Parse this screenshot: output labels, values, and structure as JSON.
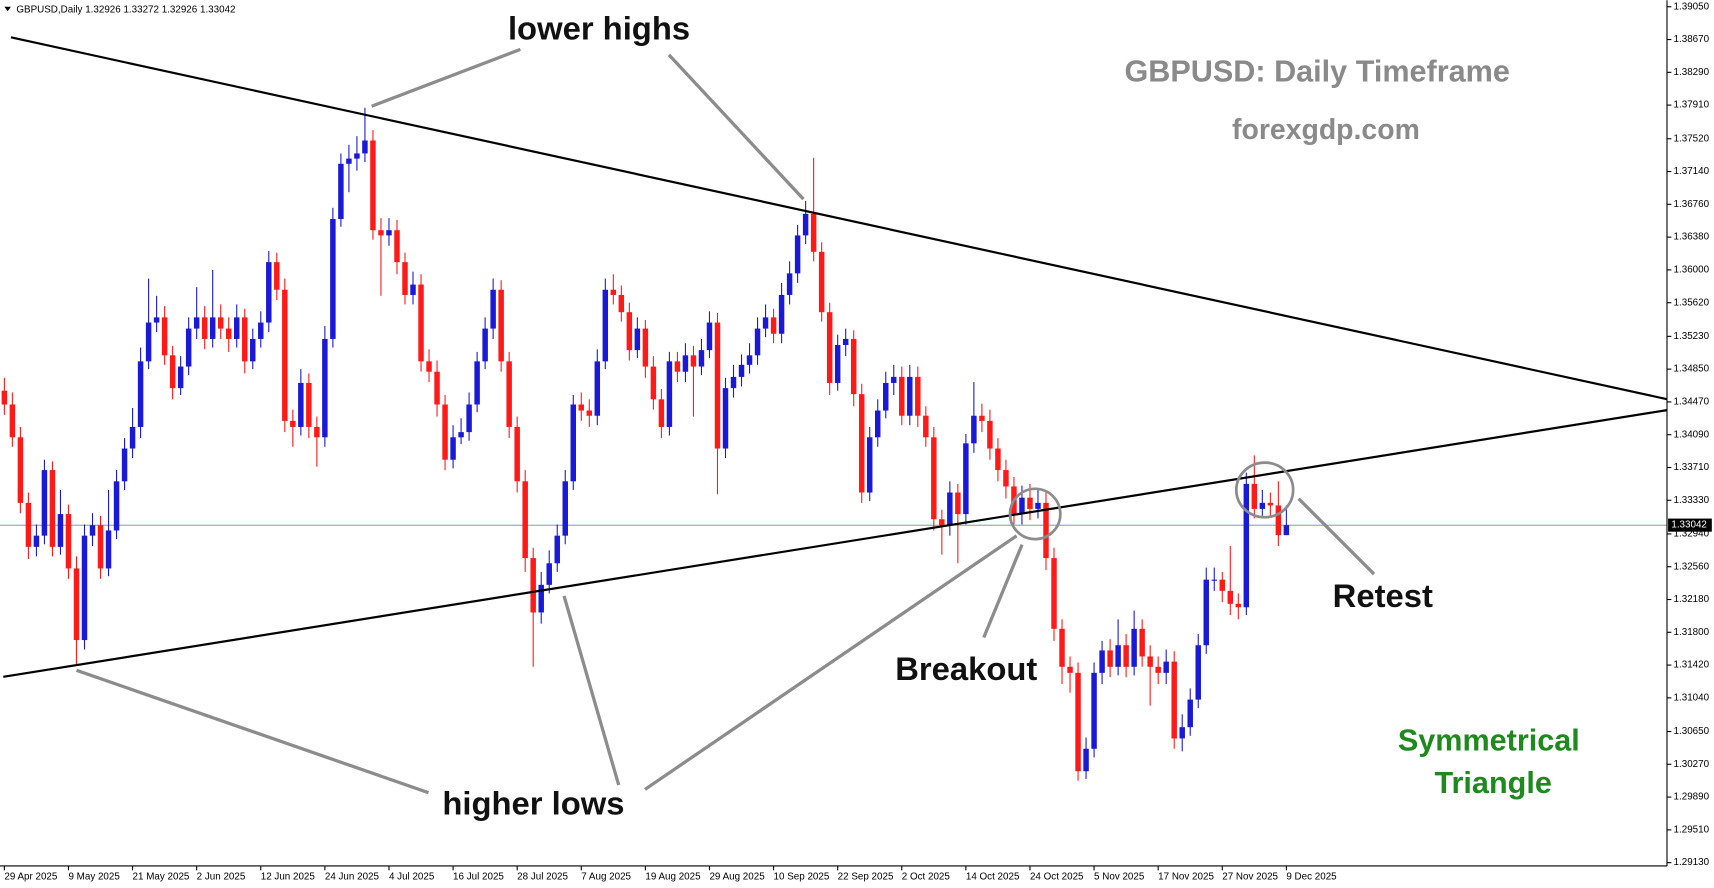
{
  "chart_data": {
    "type": "candlestick",
    "header": "GBPUSD,Daily 1.32926 1.33272 1.32926 1.33042",
    "title": "GBPUSD: Daily Timeframe",
    "subtitle": "forexgdp.com",
    "annotations": [
      "lower highs",
      "higher lows",
      "Breakout",
      "Retest"
    ],
    "pattern_label": [
      "Symmetrical",
      "Triangle"
    ],
    "up_color": "#1a1ad6",
    "down_color": "#ff1a1a",
    "last_price": {
      "value": 1.33042,
      "label": "1.33042"
    },
    "ylim": [
      1.29092,
      1.39126
    ],
    "yticks": [
      {
        "value": 1.3905,
        "label": "1.39050"
      },
      {
        "value": 1.3867,
        "label": "1.38670"
      },
      {
        "value": 1.3829,
        "label": "1.38290"
      },
      {
        "value": 1.3791,
        "label": "1.37910"
      },
      {
        "value": 1.3752,
        "label": "1.37520"
      },
      {
        "value": 1.3714,
        "label": "1.37140"
      },
      {
        "value": 1.3676,
        "label": "1.36760"
      },
      {
        "value": 1.3638,
        "label": "1.36380"
      },
      {
        "value": 1.36,
        "label": "1.36000"
      },
      {
        "value": 1.3562,
        "label": "1.35620"
      },
      {
        "value": 1.3523,
        "label": "1.35230"
      },
      {
        "value": 1.3485,
        "label": "1.34850"
      },
      {
        "value": 1.3447,
        "label": "1.34470"
      },
      {
        "value": 1.3409,
        "label": "1.34090"
      },
      {
        "value": 1.3371,
        "label": "1.33710"
      },
      {
        "value": 1.3333,
        "label": "1.33330"
      },
      {
        "value": 1.3294,
        "label": "1.32940"
      },
      {
        "value": 1.3256,
        "label": "1.32560"
      },
      {
        "value": 1.3218,
        "label": "1.32180"
      },
      {
        "value": 1.318,
        "label": "1.31800"
      },
      {
        "value": 1.3142,
        "label": "1.31420"
      },
      {
        "value": 1.3104,
        "label": "1.31040"
      },
      {
        "value": 1.3065,
        "label": "1.30650"
      },
      {
        "value": 1.3027,
        "label": "1.30270"
      },
      {
        "value": 1.2989,
        "label": "1.29890"
      },
      {
        "value": 1.2951,
        "label": "1.29510"
      },
      {
        "value": 1.2913,
        "label": "1.29130"
      }
    ],
    "xticks": [
      {
        "value": 0,
        "label": "29 Apr 2025"
      },
      {
        "value": 8,
        "label": "9 May 2025"
      },
      {
        "value": 16,
        "label": "21 May 2025"
      },
      {
        "value": 24,
        "label": "2 Jun 2025"
      },
      {
        "value": 32,
        "label": "12 Jun 2025"
      },
      {
        "value": 40,
        "label": "24 Jun 2025"
      },
      {
        "value": 48,
        "label": "4 Jul 2025"
      },
      {
        "value": 56,
        "label": "16 Jul 2025"
      },
      {
        "value": 64,
        "label": "28 Jul 2025"
      },
      {
        "value": 72,
        "label": "7 Aug 2025"
      },
      {
        "value": 80,
        "label": "19 Aug 2025"
      },
      {
        "value": 88,
        "label": "29 Aug 2025"
      },
      {
        "value": 96,
        "label": "10 Sep 2025"
      },
      {
        "value": 104,
        "label": "22 Sep 2025"
      },
      {
        "value": 112,
        "label": "2 Oct 2025"
      },
      {
        "value": 120,
        "label": "14 Oct 2025"
      },
      {
        "value": 128,
        "label": "24 Oct 2025"
      },
      {
        "value": 136,
        "label": "5 Nov 2025"
      },
      {
        "value": 144,
        "label": "17 Nov 2025"
      },
      {
        "value": 152,
        "label": "27 Nov 2025"
      },
      {
        "value": 160,
        "label": "9 Dec 2025"
      }
    ],
    "open": [
      1.346,
      1.3444,
      1.3406,
      1.333,
      1.3279,
      1.3292,
      1.3368,
      1.3279,
      1.3317,
      1.3254,
      1.3171,
      1.3292,
      1.3304,
      1.3254,
      1.3298,
      1.3355,
      1.3393,
      1.3418,
      1.3494,
      1.3539,
      1.3545,
      1.3501,
      1.3463,
      1.3488,
      1.3532,
      1.3545,
      1.352,
      1.3545,
      1.3532,
      1.352,
      1.3545,
      1.3494,
      1.352,
      1.3539,
      1.3609,
      1.3577,
      1.3425,
      1.3418,
      1.3469,
      1.3418,
      1.3406,
      1.352,
      1.3659,
      1.3723,
      1.3729,
      1.3735,
      1.375,
      1.3646,
      1.364,
      1.3646,
      1.3609,
      1.3571,
      1.3583,
      1.3494,
      1.3482,
      1.3444,
      1.338,
      1.3406,
      1.3412,
      1.3444,
      1.3494,
      1.3532,
      1.3577,
      1.3494,
      1.3418,
      1.3355,
      1.3266,
      1.3203,
      1.3235,
      1.326,
      1.3292,
      1.3355,
      1.3444,
      1.3437,
      1.3431,
      1.3494,
      1.3577,
      1.3571,
      1.3551,
      1.3507,
      1.3532,
      1.3488,
      1.345,
      1.3418,
      1.3494,
      1.3482,
      1.3501,
      1.3488,
      1.3507,
      1.3539,
      1.3393,
      1.3463,
      1.3476,
      1.349,
      1.3501,
      1.3532,
      1.3545,
      1.3526,
      1.3571,
      1.3596,
      1.364,
      1.3665,
      1.3621,
      1.3551,
      1.3469,
      1.3513,
      1.352,
      1.3456,
      1.3342,
      1.3406,
      1.3437,
      1.3469,
      1.3476,
      1.3431,
      1.3476,
      1.3431,
      1.3406,
      1.3311,
      1.3304,
      1.3342,
      1.3317,
      1.3399,
      1.3431,
      1.3425,
      1.3393,
      1.3368,
      1.3349,
      1.3317,
      1.3336,
      1.3323,
      1.333,
      1.3266,
      1.3184,
      1.314,
      1.3133,
      1.3019,
      1.3045,
      1.3133,
      1.3159,
      1.314,
      1.3165,
      1.314,
      1.3184,
      1.3152,
      1.314,
      1.3133,
      1.3146,
      1.3057,
      1.307,
      1.3102,
      1.3165,
      1.3241,
      1.3241,
      1.3228,
      1.3213,
      1.3209,
      1.3352,
      1.3323,
      1.333,
      1.3327,
      1.32926
    ],
    "high": [
      1.3475,
      1.3458,
      1.3418,
      1.3342,
      1.3305,
      1.338,
      1.3378,
      1.3345,
      1.3328,
      1.3268,
      1.3305,
      1.3318,
      1.3315,
      1.3345,
      1.3368,
      1.3405,
      1.344,
      1.351,
      1.359,
      1.357,
      1.3558,
      1.3512,
      1.35,
      1.3545,
      1.358,
      1.3558,
      1.36,
      1.356,
      1.3545,
      1.356,
      1.3555,
      1.3532,
      1.3552,
      1.3622,
      1.362,
      1.359,
      1.3438,
      1.3485,
      1.348,
      1.343,
      1.3535,
      1.3672,
      1.3735,
      1.3745,
      1.3755,
      1.3788,
      1.3762,
      1.366,
      1.366,
      1.3658,
      1.362,
      1.3598,
      1.3595,
      1.3508,
      1.3495,
      1.3455,
      1.342,
      1.3428,
      1.3458,
      1.3505,
      1.3545,
      1.359,
      1.3588,
      1.3505,
      1.343,
      1.3368,
      1.3278,
      1.325,
      1.3275,
      1.3305,
      1.3368,
      1.3455,
      1.3458,
      1.345,
      1.3508,
      1.359,
      1.3595,
      1.3582,
      1.3562,
      1.3545,
      1.3542,
      1.35,
      1.3462,
      1.3505,
      1.3505,
      1.3515,
      1.3512,
      1.352,
      1.3552,
      1.355,
      1.3475,
      1.349,
      1.3502,
      1.3515,
      1.3545,
      1.356,
      1.3555,
      1.3585,
      1.361,
      1.3652,
      1.368,
      1.373,
      1.3632,
      1.3562,
      1.3525,
      1.3532,
      1.353,
      1.3468,
      1.3418,
      1.345,
      1.3482,
      1.349,
      1.3488,
      1.349,
      1.3488,
      1.3442,
      1.3418,
      1.3322,
      1.3355,
      1.3352,
      1.341,
      1.347,
      1.3445,
      1.3438,
      1.3405,
      1.338,
      1.336,
      1.335,
      1.3352,
      1.3345,
      1.3342,
      1.3278,
      1.3195,
      1.3152,
      1.3145,
      1.3058,
      1.3145,
      1.317,
      1.3172,
      1.3195,
      1.3178,
      1.3205,
      1.3195,
      1.3165,
      1.3152,
      1.316,
      1.3158,
      1.3085,
      1.3115,
      1.3178,
      1.3255,
      1.3255,
      1.325,
      1.328,
      1.3225,
      1.3365,
      1.3385,
      1.3345,
      1.3342,
      1.3355,
      1.33272
    ],
    "low": [
      1.3432,
      1.3395,
      1.3318,
      1.3265,
      1.3268,
      1.3282,
      1.3268,
      1.327,
      1.3242,
      1.3143,
      1.316,
      1.328,
      1.3242,
      1.3245,
      1.3288,
      1.3345,
      1.3382,
      1.3405,
      1.3485,
      1.3528,
      1.349,
      1.345,
      1.3455,
      1.3478,
      1.352,
      1.3508,
      1.351,
      1.352,
      1.3505,
      1.351,
      1.348,
      1.3485,
      1.351,
      1.3528,
      1.3565,
      1.3412,
      1.3395,
      1.3408,
      1.3405,
      1.3372,
      1.3395,
      1.351,
      1.365,
      1.369,
      1.3715,
      1.3725,
      1.3635,
      1.357,
      1.3628,
      1.3595,
      1.356,
      1.356,
      1.3482,
      1.347,
      1.343,
      1.3368,
      1.337,
      1.3398,
      1.3402,
      1.3435,
      1.3485,
      1.352,
      1.3482,
      1.3405,
      1.3342,
      1.325,
      1.314,
      1.319,
      1.3225,
      1.325,
      1.3282,
      1.3345,
      1.3425,
      1.3418,
      1.342,
      1.3485,
      1.356,
      1.354,
      1.3495,
      1.3498,
      1.3475,
      1.3438,
      1.3405,
      1.3408,
      1.347,
      1.347,
      1.343,
      1.3478,
      1.3498,
      1.334,
      1.3382,
      1.3452,
      1.3465,
      1.348,
      1.349,
      1.3522,
      1.3515,
      1.3515,
      1.356,
      1.3585,
      1.363,
      1.361,
      1.354,
      1.3455,
      1.346,
      1.35,
      1.3442,
      1.333,
      1.3332,
      1.3395,
      1.3428,
      1.3455,
      1.342,
      1.342,
      1.3418,
      1.3395,
      1.3298,
      1.327,
      1.3292,
      1.326,
      1.3305,
      1.3388,
      1.3412,
      1.338,
      1.3355,
      1.3335,
      1.3305,
      1.3305,
      1.331,
      1.3312,
      1.3252,
      1.317,
      1.312,
      1.311,
      1.3008,
      1.301,
      1.3035,
      1.312,
      1.3128,
      1.313,
      1.3128,
      1.313,
      1.314,
      1.3095,
      1.312,
      1.312,
      1.3045,
      1.3042,
      1.306,
      1.3092,
      1.3155,
      1.3228,
      1.3215,
      1.32,
      1.3195,
      1.32,
      1.3312,
      1.3315,
      1.3315,
      1.328,
      1.32926
    ],
    "close": [
      1.3444,
      1.3406,
      1.333,
      1.3279,
      1.3292,
      1.3368,
      1.3279,
      1.3317,
      1.3254,
      1.3171,
      1.3292,
      1.3304,
      1.3254,
      1.3298,
      1.3355,
      1.3393,
      1.3418,
      1.3494,
      1.3539,
      1.3545,
      1.3501,
      1.3463,
      1.3488,
      1.3532,
      1.3545,
      1.352,
      1.3545,
      1.3532,
      1.352,
      1.3545,
      1.3494,
      1.352,
      1.3539,
      1.3609,
      1.3577,
      1.3425,
      1.3418,
      1.3469,
      1.3418,
      1.3406,
      1.352,
      1.3659,
      1.3723,
      1.3729,
      1.3735,
      1.375,
      1.3646,
      1.364,
      1.3646,
      1.3609,
      1.3571,
      1.3583,
      1.3494,
      1.3482,
      1.3444,
      1.338,
      1.3406,
      1.3412,
      1.3444,
      1.3494,
      1.3532,
      1.3577,
      1.3494,
      1.3418,
      1.3355,
      1.3266,
      1.3203,
      1.3235,
      1.326,
      1.3292,
      1.3355,
      1.3444,
      1.3437,
      1.3431,
      1.3494,
      1.3577,
      1.3571,
      1.3551,
      1.3507,
      1.3532,
      1.3488,
      1.345,
      1.3418,
      1.3494,
      1.3482,
      1.3501,
      1.3488,
      1.3507,
      1.3539,
      1.3393,
      1.3463,
      1.3476,
      1.349,
      1.3501,
      1.3532,
      1.3545,
      1.3526,
      1.3571,
      1.3596,
      1.364,
      1.3665,
      1.3621,
      1.3551,
      1.3469,
      1.3513,
      1.352,
      1.3456,
      1.3342,
      1.3406,
      1.3437,
      1.3469,
      1.3476,
      1.3431,
      1.3476,
      1.3431,
      1.3406,
      1.3311,
      1.3304,
      1.3342,
      1.3317,
      1.3399,
      1.3431,
      1.3425,
      1.3393,
      1.3368,
      1.3349,
      1.3317,
      1.3336,
      1.3323,
      1.333,
      1.3266,
      1.3184,
      1.314,
      1.3133,
      1.3019,
      1.3045,
      1.3133,
      1.3159,
      1.314,
      1.3165,
      1.314,
      1.3184,
      1.3152,
      1.314,
      1.3133,
      1.3146,
      1.3057,
      1.307,
      1.3102,
      1.3165,
      1.3241,
      1.3241,
      1.3228,
      1.3213,
      1.3209,
      1.3352,
      1.3323,
      1.333,
      1.3327,
      1.32926,
      1.33042
    ]
  }
}
